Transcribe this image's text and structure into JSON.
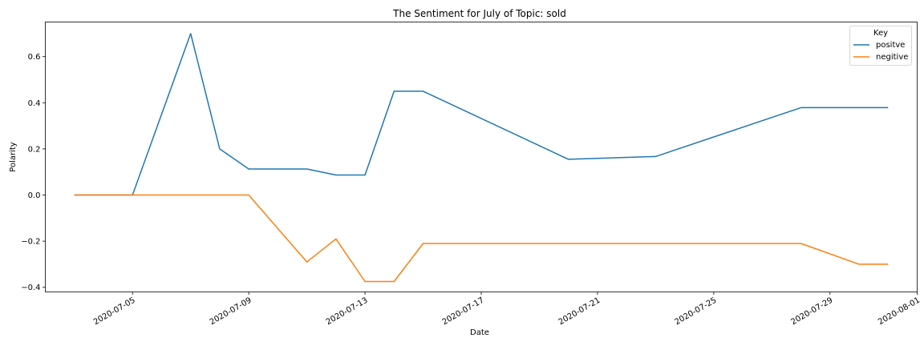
{
  "chart_data": {
    "type": "line",
    "title": "The Sentiment for July of Topic: sold",
    "xlabel": "Date",
    "ylabel": "Polarity",
    "xlim": [
      "2020-07-02",
      "2020-08-01"
    ],
    "ylim": [
      -0.42,
      0.75
    ],
    "x_ticks": [
      "2020-07-05",
      "2020-07-09",
      "2020-07-13",
      "2020-07-17",
      "2020-07-21",
      "2020-07-25",
      "2020-07-29",
      "2020-08-01"
    ],
    "y_ticks": [
      -0.4,
      -0.2,
      0.0,
      0.2,
      0.4,
      0.6
    ],
    "y_tick_labels": [
      "−0.4",
      "−0.2",
      "0.0",
      "0.2",
      "0.4",
      "0.6"
    ],
    "grid": false,
    "legend": {
      "title": "Key",
      "placement": "top-right"
    },
    "series": [
      {
        "name": "positve",
        "color": "#1f77b4",
        "x": [
          "2020-07-03",
          "2020-07-05",
          "2020-07-07",
          "2020-07-08",
          "2020-07-09",
          "2020-07-11",
          "2020-07-12",
          "2020-07-13",
          "2020-07-14",
          "2020-07-15",
          "2020-07-20",
          "2020-07-23",
          "2020-07-28",
          "2020-07-31"
        ],
        "values": [
          0.0,
          0.0,
          0.7,
          0.2,
          0.113,
          0.113,
          0.087,
          0.087,
          0.45,
          0.45,
          0.155,
          0.167,
          0.379,
          0.379
        ]
      },
      {
        "name": "negitive",
        "color": "#ff7f0e",
        "x": [
          "2020-07-03",
          "2020-07-09",
          "2020-07-11",
          "2020-07-12",
          "2020-07-13",
          "2020-07-14",
          "2020-07-15",
          "2020-07-28",
          "2020-07-30",
          "2020-07-31"
        ],
        "values": [
          0.0,
          0.0,
          -0.29,
          -0.19,
          -0.375,
          -0.375,
          -0.21,
          -0.21,
          -0.3,
          -0.3
        ]
      }
    ]
  }
}
